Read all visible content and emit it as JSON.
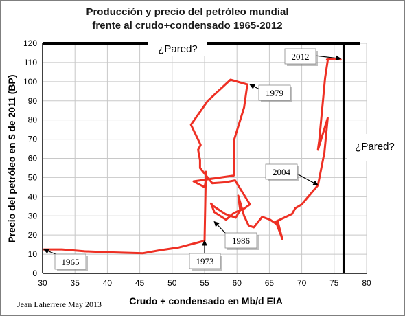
{
  "title_lines": [
    "Producción y precio del petróleo mundial",
    "frente al crudo+condensado 1965-2012"
  ],
  "credit": "Jean Laherrere May 2013",
  "colors": {
    "line": "#ee3024",
    "grid": "#c8c8c8",
    "axis": "#000000",
    "wall": "#000000"
  },
  "chart_data": {
    "type": "line",
    "title": "Producción y precio del petróleo mundial frente al crudo+condensado 1965-2012",
    "xlabel": "Crudo + condensado en Mb/d EIA",
    "ylabel": "Precio del petróleo en $ de 2011 (BP)",
    "xlim": [
      30,
      80
    ],
    "ylim": [
      0,
      120
    ],
    "x_ticks": [
      "30",
      "35",
      "40",
      "45",
      "50",
      "55",
      "60",
      "65",
      "70",
      "75",
      "80"
    ],
    "y_ticks": [
      "0",
      "10",
      "20",
      "30",
      "40",
      "50",
      "60",
      "70",
      "80",
      "90",
      "100",
      "110",
      "120"
    ],
    "grid": true,
    "legend": "none",
    "series": [
      {
        "x": [
          30.2,
          33.0,
          36.5,
          40.0,
          45.5,
          48.0,
          51.0,
          55.0,
          55.2,
          55.3,
          55.0,
          53.3,
          59.5,
          59.6,
          61.1,
          61.6,
          59.0,
          55.5,
          52.9,
          54.4,
          54.0,
          54.3,
          54.3,
          56.2,
          58.2,
          59.7,
          62.0,
          61.2,
          59.5,
          58.3,
          56.5,
          56.0,
          56.4,
          58.2,
          59.8,
          60.5,
          60.2,
          61.1,
          61.8,
          62.6,
          63.9,
          65.1,
          66.2,
          66.3,
          67.0,
          66.0,
          68.5,
          69.0,
          70.0,
          72.5,
          73.5,
          74.0,
          72.5,
          72.7,
          73.6,
          74.0,
          73.9,
          75.0,
          76.0
        ],
        "y": [
          12.5,
          12.5,
          11.5,
          11.0,
          10.5,
          12.0,
          13.5,
          17.0,
          53.0,
          50.0,
          45.0,
          48.0,
          51.0,
          70.0,
          86.5,
          98.5,
          101.0,
          90.0,
          77.5,
          67.0,
          64.5,
          59.0,
          55.0,
          47.0,
          47.5,
          48.5,
          36.0,
          34.0,
          31.5,
          28.0,
          32.0,
          36.5,
          35.0,
          31.0,
          29.0,
          33.0,
          40.5,
          30.0,
          25.0,
          24.0,
          29.5,
          28.0,
          25.5,
          27.0,
          18.0,
          27.0,
          31.0,
          34.0,
          36.0,
          46.0,
          63.0,
          81.0,
          64.5,
          69.5,
          102.0,
          111.0,
          111.5,
          112.0,
          111.5
        ]
      }
    ],
    "annotations": [
      {
        "text": "1965",
        "x": 30.2,
        "y": 12.5
      },
      {
        "text": "1973",
        "x": 55.0,
        "y": 17.0
      },
      {
        "text": "1979",
        "x": 62.0,
        "y": 98.5
      },
      {
        "text": "1986",
        "x": 56.5,
        "y": 27.0
      },
      {
        "text": "2004",
        "x": 72.5,
        "y": 46.0
      },
      {
        "text": "2012",
        "x": 76.0,
        "y": 112.0
      }
    ],
    "walls": [
      {
        "orientation": "horizontal",
        "value": 120,
        "label": "¿Pared?"
      },
      {
        "orientation": "vertical",
        "value": 76.5,
        "label": "¿Pared?"
      }
    ]
  }
}
